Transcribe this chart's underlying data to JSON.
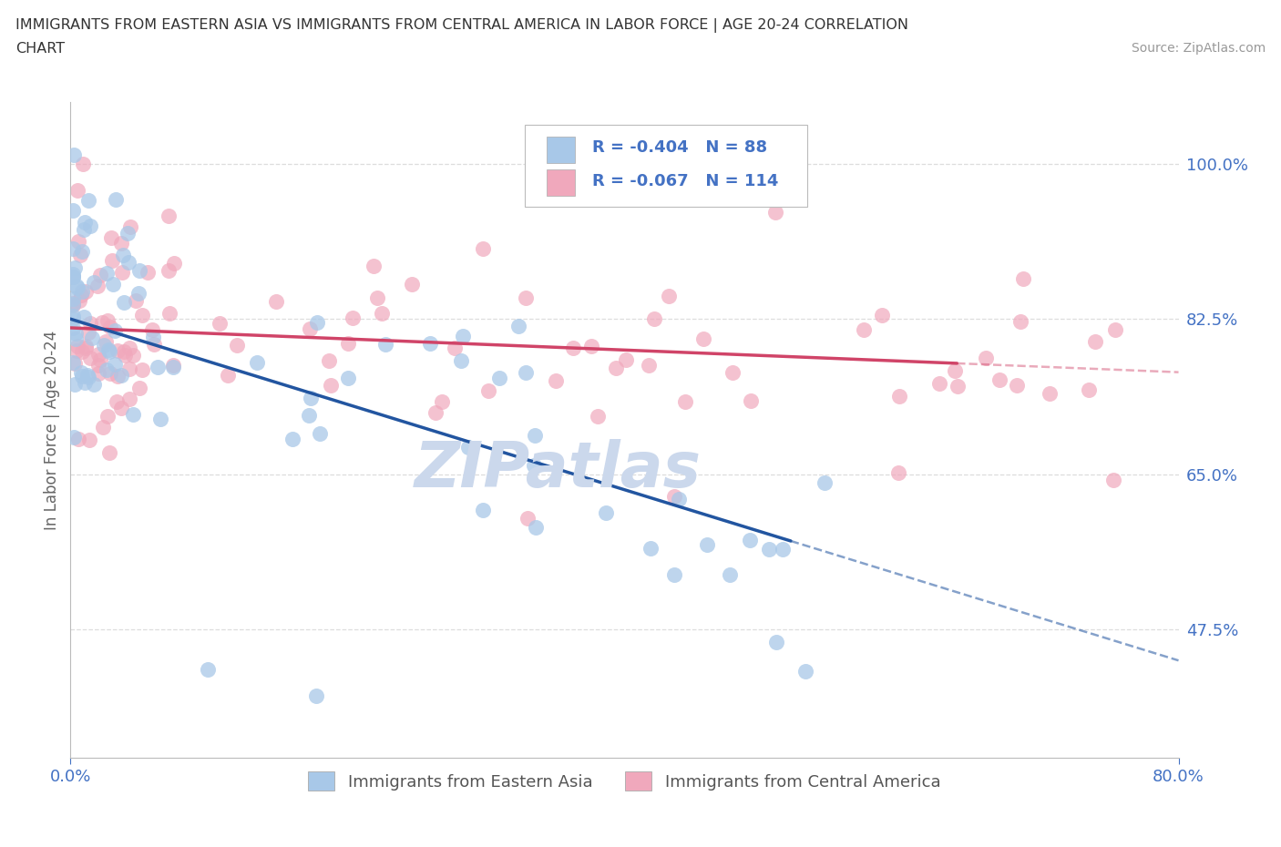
{
  "title_line1": "IMMIGRANTS FROM EASTERN ASIA VS IMMIGRANTS FROM CENTRAL AMERICA IN LABOR FORCE | AGE 20-24 CORRELATION",
  "title_line2": "CHART",
  "source_text": "Source: ZipAtlas.com",
  "ylabel": "In Labor Force | Age 20-24",
  "legend_label1": "Immigrants from Eastern Asia",
  "legend_label2": "Immigrants from Central America",
  "R1": -0.404,
  "N1": 88,
  "R2": -0.067,
  "N2": 114,
  "y_ticks": [
    0.475,
    0.65,
    0.825,
    1.0
  ],
  "y_tick_labels": [
    "47.5%",
    "65.0%",
    "82.5%",
    "100.0%"
  ],
  "x_min": 0.0,
  "x_max": 0.8,
  "y_min": 0.33,
  "y_max": 1.07,
  "color_blue_fill": "#A8C8E8",
  "color_pink_fill": "#F0A8BC",
  "color_blue_line": "#2255A0",
  "color_pink_line": "#D04468",
  "color_axis_label": "#4472C4",
  "color_grid": "#DDDDDD",
  "color_title": "#333333",
  "color_source": "#999999",
  "watermark_color": "#CBD8EC",
  "background_color": "#FFFFFF",
  "blue_trend_x0": 0.0,
  "blue_trend_y0": 0.825,
  "blue_trend_x1": 0.8,
  "blue_trend_y1": 0.44,
  "pink_trend_x0": 0.0,
  "pink_trend_y0": 0.815,
  "pink_trend_x1": 0.8,
  "pink_trend_y1": 0.765,
  "blue_solid_cutoff": 0.52,
  "pink_solid_cutoff": 0.64
}
